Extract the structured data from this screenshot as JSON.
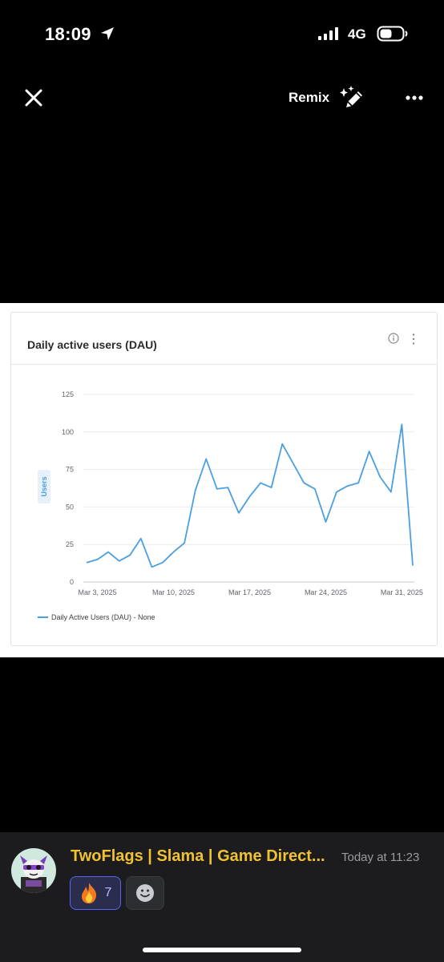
{
  "status_bar": {
    "time": "18:09",
    "network": "4G"
  },
  "top_bar": {
    "remix_label": "Remix"
  },
  "card": {
    "title": "Daily active users (DAU)"
  },
  "chart_data": {
    "type": "line",
    "ylabel": "Users",
    "ylim": [
      0,
      125
    ],
    "yticks": [
      0,
      25,
      50,
      75,
      100,
      125
    ],
    "xtick_labels": [
      "Mar 3, 2025",
      "Mar 10, 2025",
      "Mar 17, 2025",
      "Mar 24, 2025",
      "Mar 31, 2025"
    ],
    "xtick_day_index": [
      0,
      7,
      14,
      21,
      28
    ],
    "grid": true,
    "legend_position": "bottom-left",
    "series": [
      {
        "name": "Daily Active Users (DAU) - None",
        "color": "#4a9fe0",
        "x_start": "Mar 2, 2025",
        "values": [
          13,
          15,
          20,
          14,
          18,
          29,
          10,
          13,
          20,
          26,
          61,
          82,
          62,
          63,
          46,
          57,
          66,
          63,
          92,
          79,
          66,
          62,
          40,
          60,
          64,
          66,
          87,
          70,
          60,
          105,
          11
        ]
      }
    ]
  },
  "message": {
    "author": "TwoFlags | Slama | Game Direct...",
    "time": "Today at 11:23",
    "reactions": [
      {
        "emoji": "fire",
        "count": "7"
      }
    ]
  }
}
